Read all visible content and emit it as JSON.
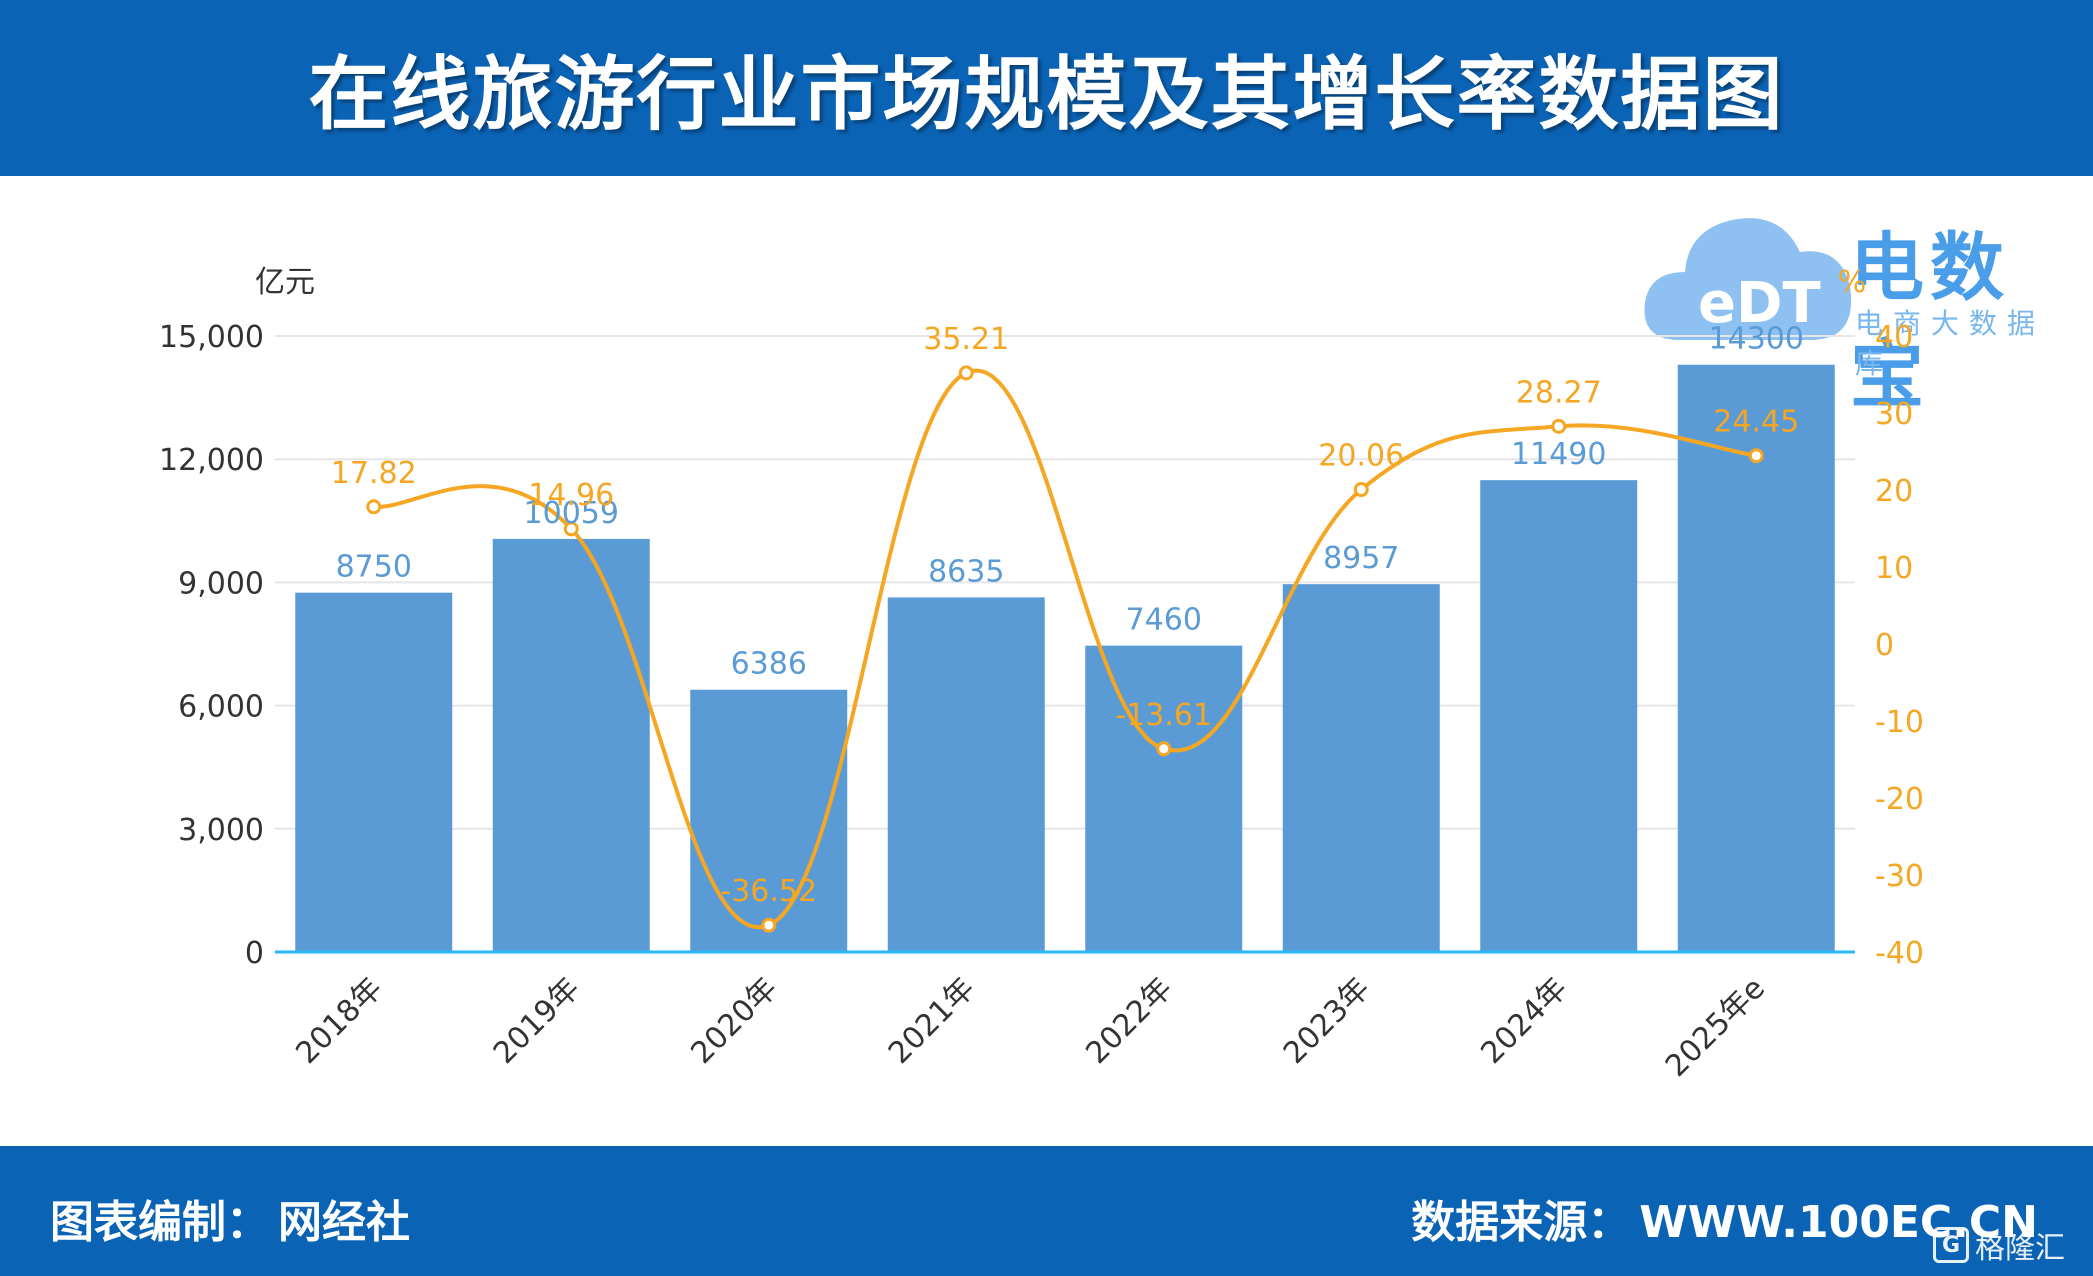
{
  "title": "在线旅游行业市场规模及其增长率数据图",
  "footer": {
    "credit_label": "图表编制：",
    "credit_value": "网经社",
    "source_label": "数据来源：",
    "source_value": "WWW.100EC.CN"
  },
  "logo": {
    "brand": "电数宝",
    "sub": "电商大数据库",
    "mark": "eDT"
  },
  "watermark": {
    "text": "格隆汇",
    "mark": "G"
  },
  "colors": {
    "banner": "#0b63b5",
    "bar": "#5b9bd5",
    "bar_label": "#5b9bd5",
    "line": "#f5a623",
    "axis_line": "#29b6f6",
    "grid": "#e6e6e6"
  },
  "chart_data": {
    "type": "bar",
    "categories": [
      "2018年",
      "2019年",
      "2020年",
      "2021年",
      "2022年",
      "2023年",
      "2024年",
      "2025年e"
    ],
    "series": [
      {
        "type": "bar",
        "axis": "left",
        "values": [
          8750,
          10059,
          6386,
          8635,
          7460,
          8957,
          11490,
          14300
        ]
      },
      {
        "type": "line",
        "axis": "right",
        "values": [
          17.82,
          14.96,
          -36.52,
          35.21,
          -13.61,
          20.06,
          28.27,
          24.45
        ]
      }
    ],
    "y_left": {
      "unit": "亿元",
      "ylim": [
        0,
        15000
      ],
      "ticks": [
        0,
        3000,
        6000,
        9000,
        12000,
        15000
      ],
      "tick_labels": [
        "0",
        "3,000",
        "6,000",
        "9,000",
        "12,000",
        "15,000"
      ]
    },
    "y_right": {
      "unit": "%",
      "ylim": [
        -40,
        40
      ],
      "ticks": [
        -40,
        -30,
        -20,
        -10,
        0,
        10,
        20,
        30,
        40
      ],
      "tick_labels": [
        "-40",
        "-30",
        "-20",
        "-10",
        "0",
        "10",
        "20",
        "30",
        "40"
      ]
    },
    "bar_labels": [
      "8750",
      "10059",
      "6386",
      "8635",
      "7460",
      "8957",
      "11490",
      "14300"
    ],
    "line_labels": [
      "17.82",
      "14.96",
      "-36.52",
      "35.21",
      "-13.61",
      "20.06",
      "28.27",
      "24.45"
    ],
    "grid": true
  }
}
